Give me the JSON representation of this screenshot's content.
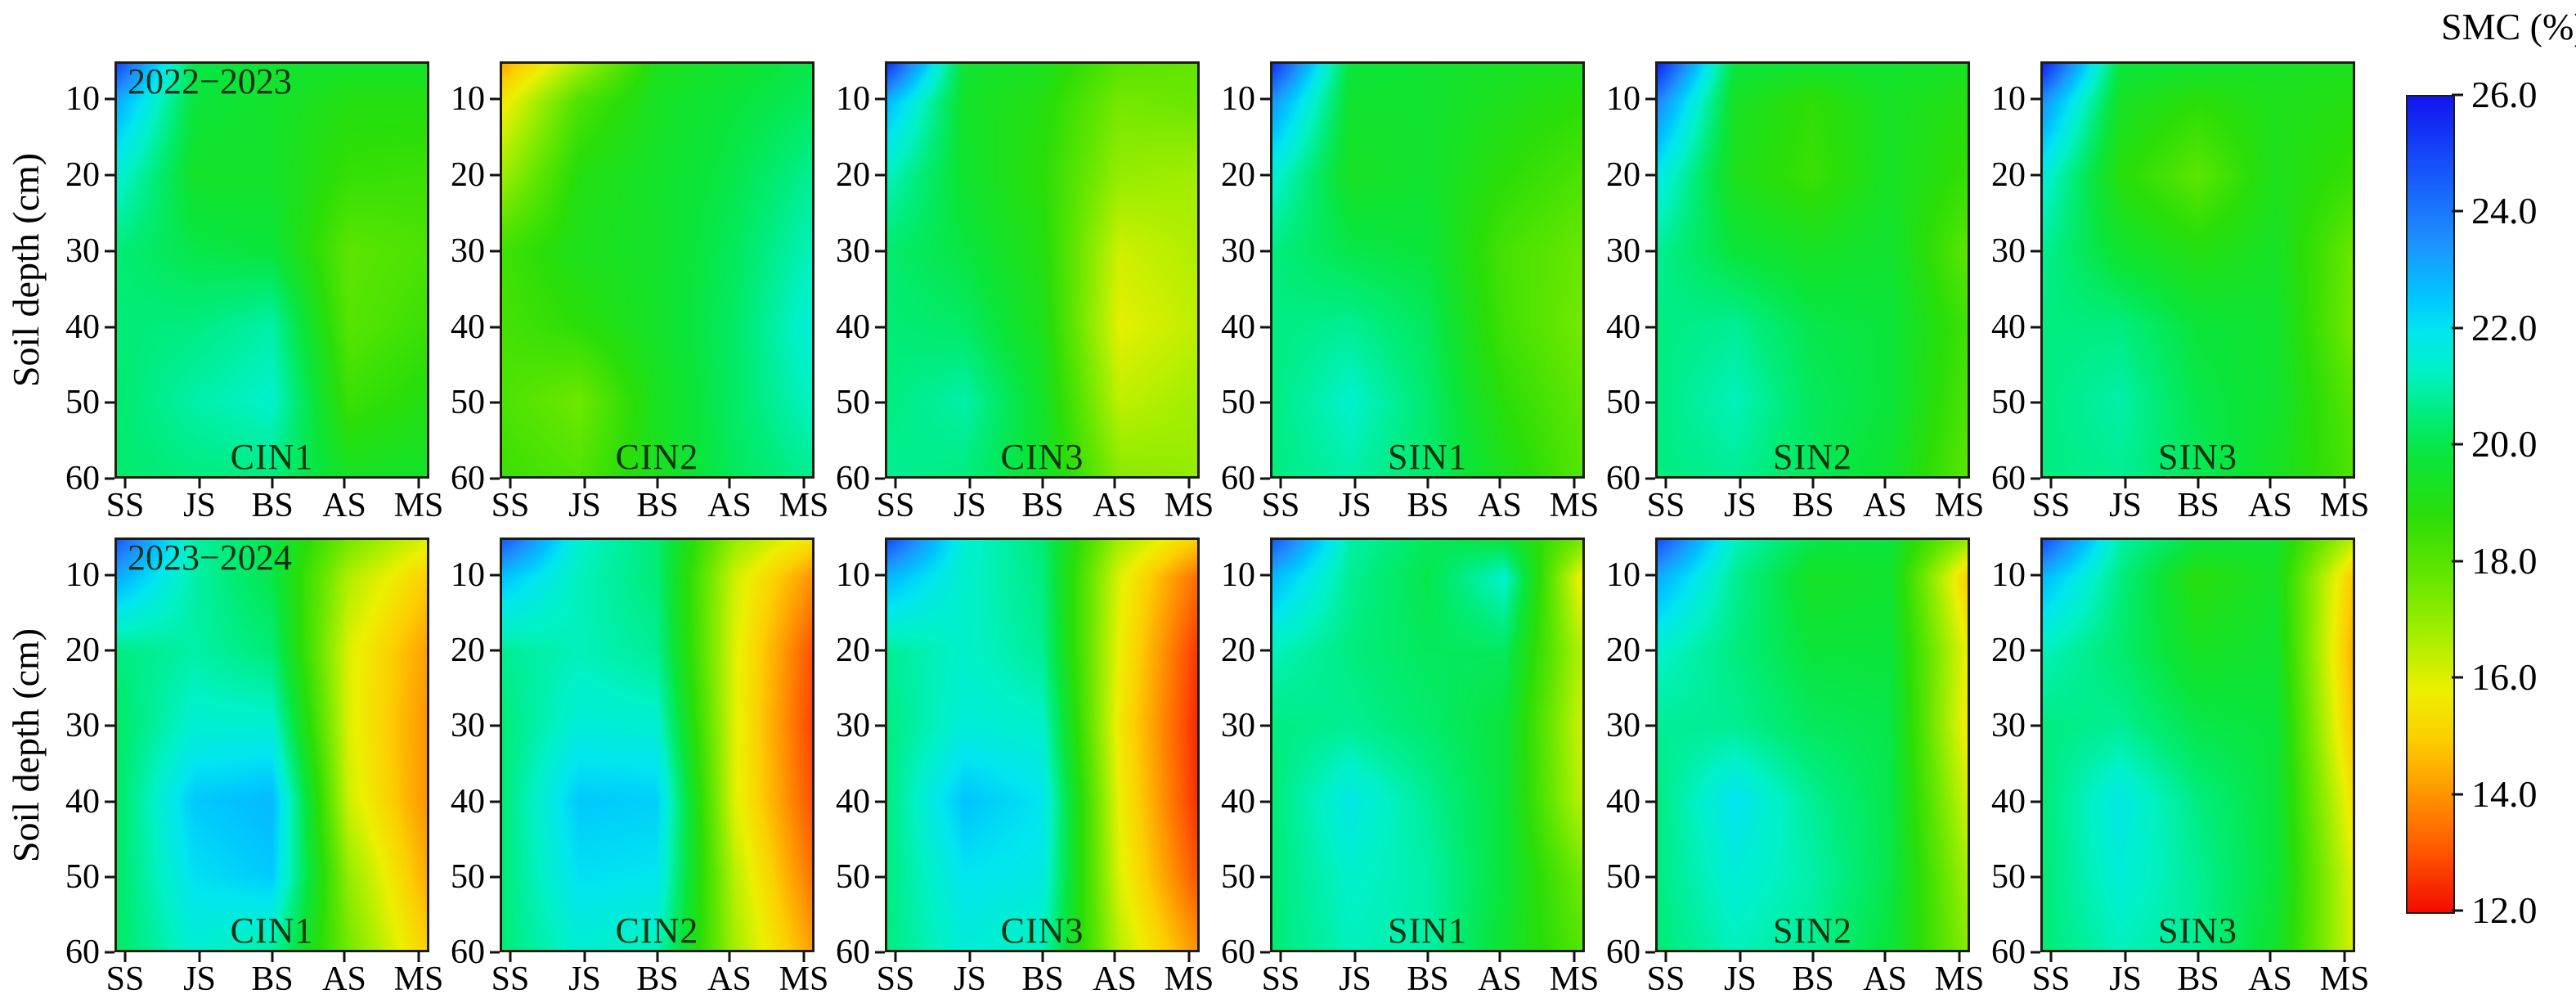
{
  "figure": {
    "colorbar_title": "SMC (%)",
    "ylabel": "Soil depth (cm)",
    "row_annotations": [
      "2022−2023",
      "2023−2024"
    ]
  },
  "chart_data": {
    "type": "heatmap",
    "subtype": "filled-contour-grid",
    "x_categories": [
      "SS",
      "JS",
      "BS",
      "AS",
      "MS"
    ],
    "xlabel_note": "crop growth stages",
    "depths_cm": [
      5,
      10,
      20,
      30,
      40,
      50,
      60
    ],
    "depth_tick_labels": [
      "10",
      "20",
      "30",
      "40",
      "50",
      "60"
    ],
    "ylabel": "Soil depth (cm)",
    "colorbar": {
      "title": "SMC (%)",
      "min": 12.0,
      "max": 26.0,
      "tick_labels": [
        "26.0",
        "24.0",
        "22.0",
        "20.0",
        "18.0",
        "16.0",
        "14.0",
        "12.0"
      ],
      "orientation": "vertical-right"
    },
    "colormap_stops": [
      {
        "v": 26.0,
        "c": [
          16,
          22,
          240
        ]
      },
      {
        "v": 24.8,
        "c": [
          22,
          82,
          252
        ]
      },
      {
        "v": 23.5,
        "c": [
          30,
          146,
          255
        ]
      },
      {
        "v": 22.6,
        "c": [
          0,
          196,
          255
        ]
      },
      {
        "v": 22.0,
        "c": [
          0,
          230,
          240
        ]
      },
      {
        "v": 21.3,
        "c": [
          0,
          242,
          198
        ]
      },
      {
        "v": 20.5,
        "c": [
          0,
          236,
          118
        ]
      },
      {
        "v": 19.8,
        "c": [
          10,
          229,
          58
        ]
      },
      {
        "v": 18.8,
        "c": [
          42,
          222,
          8
        ]
      },
      {
        "v": 17.8,
        "c": [
          98,
          230,
          0
        ]
      },
      {
        "v": 16.8,
        "c": [
          162,
          238,
          0
        ]
      },
      {
        "v": 15.8,
        "c": [
          236,
          240,
          0
        ]
      },
      {
        "v": 15.0,
        "c": [
          252,
          208,
          0
        ]
      },
      {
        "v": 14.0,
        "c": [
          255,
          148,
          0
        ]
      },
      {
        "v": 13.0,
        "c": [
          255,
          84,
          0
        ]
      },
      {
        "v": 12.0,
        "c": [
          244,
          12,
          0
        ]
      }
    ],
    "rows": [
      {
        "year": "2022−2023"
      },
      {
        "year": "2023−2024"
      }
    ],
    "panels": [
      {
        "row": 0,
        "col": 0,
        "label": "CIN1",
        "year": "2022−2023",
        "values": [
          [
            25.0,
            20.0,
            19.6,
            19.5,
            19.5
          ],
          [
            23.0,
            19.8,
            19.5,
            19.0,
            19.0
          ],
          [
            21.5,
            19.5,
            19.5,
            18.6,
            18.5
          ],
          [
            20.5,
            20.0,
            19.8,
            17.9,
            18.2
          ],
          [
            20.5,
            20.6,
            21.0,
            18.0,
            18.5
          ],
          [
            20.4,
            21.0,
            21.4,
            18.5,
            19.0
          ],
          [
            20.4,
            20.6,
            20.6,
            19.4,
            19.5
          ]
        ]
      },
      {
        "row": 0,
        "col": 1,
        "label": "CIN2",
        "year": "2022−2023",
        "values": [
          [
            14.4,
            16.8,
            19.2,
            19.6,
            20.0
          ],
          [
            15.6,
            18.2,
            19.4,
            19.8,
            20.2
          ],
          [
            16.9,
            19.0,
            19.5,
            20.0,
            20.8
          ],
          [
            18.4,
            19.2,
            19.5,
            20.2,
            21.2
          ],
          [
            18.3,
            18.8,
            19.5,
            20.3,
            21.6
          ],
          [
            18.2,
            17.6,
            19.3,
            20.3,
            21.3
          ],
          [
            18.5,
            18.1,
            19.3,
            20.2,
            20.8
          ]
        ]
      },
      {
        "row": 0,
        "col": 2,
        "label": "CIN3",
        "year": "2022−2023",
        "values": [
          [
            25.4,
            19.6,
            19.3,
            18.0,
            17.8
          ],
          [
            22.8,
            19.5,
            19.0,
            17.5,
            17.7
          ],
          [
            21.2,
            19.6,
            18.8,
            17.0,
            16.8
          ],
          [
            20.4,
            19.9,
            19.0,
            16.2,
            16.6
          ],
          [
            20.5,
            20.3,
            19.2,
            15.9,
            16.4
          ],
          [
            20.6,
            21.0,
            19.5,
            16.4,
            16.8
          ],
          [
            20.8,
            20.6,
            19.6,
            17.2,
            17.0
          ]
        ]
      },
      {
        "row": 0,
        "col": 3,
        "label": "SIN1",
        "year": "2022−2023",
        "values": [
          [
            25.4,
            19.8,
            19.6,
            19.4,
            19.2
          ],
          [
            23.4,
            19.6,
            19.6,
            19.2,
            18.8
          ],
          [
            21.5,
            19.4,
            19.6,
            18.8,
            18.2
          ],
          [
            20.6,
            20.0,
            19.8,
            18.3,
            17.7
          ],
          [
            20.6,
            20.8,
            20.2,
            18.4,
            17.5
          ],
          [
            20.6,
            21.4,
            20.4,
            18.8,
            17.8
          ],
          [
            20.6,
            21.0,
            20.4,
            19.2,
            18.0
          ]
        ]
      },
      {
        "row": 0,
        "col": 4,
        "label": "SIN2",
        "year": "2022−2023",
        "values": [
          [
            25.7,
            19.8,
            19.6,
            19.6,
            19.4
          ],
          [
            23.7,
            19.4,
            18.7,
            19.4,
            19.0
          ],
          [
            21.8,
            19.2,
            18.5,
            19.4,
            18.6
          ],
          [
            20.8,
            19.8,
            19.4,
            19.6,
            17.9
          ],
          [
            20.6,
            20.8,
            20.0,
            19.8,
            18.4
          ],
          [
            20.6,
            21.2,
            20.2,
            19.8,
            18.2
          ],
          [
            20.6,
            20.8,
            20.2,
            19.6,
            17.9
          ]
        ]
      },
      {
        "row": 0,
        "col": 5,
        "label": "SIN3",
        "year": "2022−2023",
        "values": [
          [
            25.7,
            19.8,
            19.6,
            19.4,
            19.2
          ],
          [
            23.5,
            19.4,
            18.8,
            19.2,
            19.0
          ],
          [
            21.6,
            18.9,
            17.9,
            19.2,
            18.6
          ],
          [
            20.8,
            19.6,
            19.0,
            19.4,
            17.7
          ],
          [
            20.6,
            20.6,
            19.8,
            19.6,
            17.5
          ],
          [
            20.6,
            21.0,
            20.0,
            19.6,
            18.0
          ],
          [
            20.6,
            20.8,
            20.2,
            19.4,
            18.2
          ]
        ]
      },
      {
        "row": 1,
        "col": 0,
        "label": "CIN1",
        "year": "2023−2024",
        "values": [
          [
            24.6,
            21.0,
            20.0,
            17.5,
            16.0
          ],
          [
            23.0,
            21.0,
            20.0,
            16.6,
            15.0
          ],
          [
            20.6,
            21.0,
            20.5,
            16.0,
            14.2
          ],
          [
            20.3,
            21.5,
            21.5,
            16.0,
            14.0
          ],
          [
            20.3,
            22.5,
            22.8,
            16.2,
            14.0
          ],
          [
            20.3,
            22.1,
            22.5,
            17.0,
            14.4
          ],
          [
            20.3,
            21.5,
            21.0,
            17.5,
            15.0
          ]
        ]
      },
      {
        "row": 1,
        "col": 1,
        "label": "CIN2",
        "year": "2023−2024",
        "values": [
          [
            24.6,
            21.4,
            20.5,
            17.0,
            15.4
          ],
          [
            22.6,
            21.2,
            20.5,
            16.2,
            14.0
          ],
          [
            20.8,
            21.2,
            20.8,
            16.0,
            13.0
          ],
          [
            20.5,
            21.6,
            21.5,
            16.0,
            12.8
          ],
          [
            20.5,
            22.5,
            22.4,
            16.0,
            13.0
          ],
          [
            20.5,
            22.1,
            22.0,
            16.5,
            13.5
          ],
          [
            20.5,
            21.5,
            21.2,
            16.8,
            14.2
          ]
        ]
      },
      {
        "row": 1,
        "col": 2,
        "label": "CIN3",
        "year": "2023−2024",
        "values": [
          [
            24.8,
            21.5,
            20.5,
            16.8,
            15.0
          ],
          [
            22.8,
            21.4,
            20.6,
            16.0,
            13.4
          ],
          [
            20.8,
            21.4,
            20.8,
            15.8,
            12.6
          ],
          [
            20.6,
            21.6,
            21.4,
            15.6,
            12.4
          ],
          [
            20.6,
            22.6,
            22.0,
            15.8,
            12.5
          ],
          [
            20.6,
            22.0,
            21.8,
            16.0,
            13.0
          ],
          [
            20.6,
            21.6,
            21.2,
            16.5,
            14.0
          ]
        ]
      },
      {
        "row": 1,
        "col": 3,
        "label": "SIN1",
        "year": "2023−2024",
        "values": [
          [
            24.6,
            21.0,
            20.2,
            19.8,
            17.5
          ],
          [
            22.8,
            20.8,
            20.0,
            21.4,
            15.6
          ],
          [
            21.2,
            20.6,
            20.2,
            20.2,
            16.5
          ],
          [
            20.6,
            20.8,
            20.4,
            19.8,
            16.2
          ],
          [
            20.5,
            21.8,
            20.8,
            19.8,
            16.4
          ],
          [
            20.5,
            21.4,
            21.0,
            19.8,
            17.5
          ],
          [
            20.5,
            21.2,
            21.0,
            19.6,
            18.0
          ]
        ]
      },
      {
        "row": 1,
        "col": 4,
        "label": "SIN2",
        "year": "2023−2024",
        "values": [
          [
            24.8,
            21.2,
            20.0,
            19.8,
            17.0
          ],
          [
            23.0,
            20.8,
            19.4,
            19.6,
            15.0
          ],
          [
            21.4,
            20.6,
            19.8,
            19.8,
            15.8
          ],
          [
            20.8,
            20.8,
            20.2,
            20.0,
            15.6
          ],
          [
            20.6,
            22.0,
            20.8,
            20.0,
            16.2
          ],
          [
            20.6,
            21.6,
            21.0,
            20.0,
            16.8
          ],
          [
            20.5,
            21.2,
            20.8,
            19.8,
            17.2
          ]
        ]
      },
      {
        "row": 1,
        "col": 5,
        "label": "SIN3",
        "year": "2023−2024",
        "values": [
          [
            24.8,
            21.0,
            19.8,
            19.6,
            16.5
          ],
          [
            22.8,
            20.6,
            18.9,
            19.4,
            14.9
          ],
          [
            21.2,
            20.4,
            19.4,
            19.6,
            14.5
          ],
          [
            20.6,
            20.8,
            20.0,
            19.8,
            14.8
          ],
          [
            20.5,
            21.8,
            20.6,
            19.8,
            15.5
          ],
          [
            20.5,
            21.6,
            20.8,
            19.8,
            16.0
          ],
          [
            20.5,
            21.2,
            20.8,
            19.6,
            16.1
          ]
        ]
      }
    ]
  }
}
